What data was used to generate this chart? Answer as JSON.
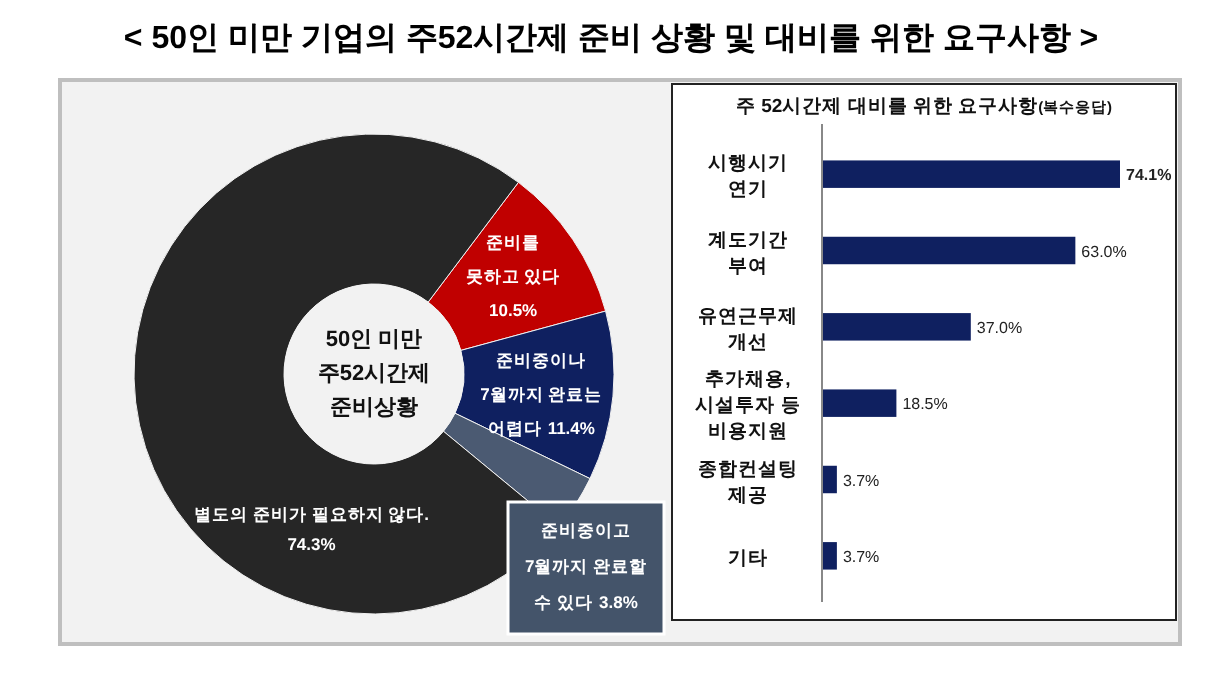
{
  "chart_data": [
    {
      "type": "donut",
      "title": "< 50인 미만 기업의 주52시간제 준비 상황 및 대비를 위한 요구사항 >",
      "annotations": [
        "50인 미만\n주52시간제\n준비상황"
      ],
      "categories": [
        "준비를\n못하고 있다",
        "준비중이나\n7월까지 완료는\n어렵다",
        "준비중이고\n7월까지 완료할\n수 있다",
        "별도의 준비가 필요하지 않다."
      ],
      "values": [
        10.5,
        11.4,
        3.8,
        74.3
      ],
      "colors": [
        "#c00000",
        "#0f2060",
        "#4b5a72",
        "#262626"
      ],
      "value_labels": [
        "10.5%",
        "11.4%",
        "3.8%",
        "74.3%"
      ]
    },
    {
      "type": "bar",
      "orientation": "horizontal",
      "title": "주 52시간제 대비를 위한 요구사항(복수응답)",
      "categories": [
        "시행시기\n연기",
        "계도기간\n부여",
        "유연근무제\n개선",
        "추가채용,\n시설투자 등\n비용지원",
        "종합컨설팅\n제공",
        "기타"
      ],
      "values": [
        74.1,
        63.0,
        37.0,
        18.5,
        3.7,
        3.7
      ],
      "value_labels": [
        "74.1%",
        "63.0%",
        "37.0%",
        "18.5%",
        "3.7%",
        "3.7%"
      ],
      "color": "#0f2060"
    }
  ]
}
